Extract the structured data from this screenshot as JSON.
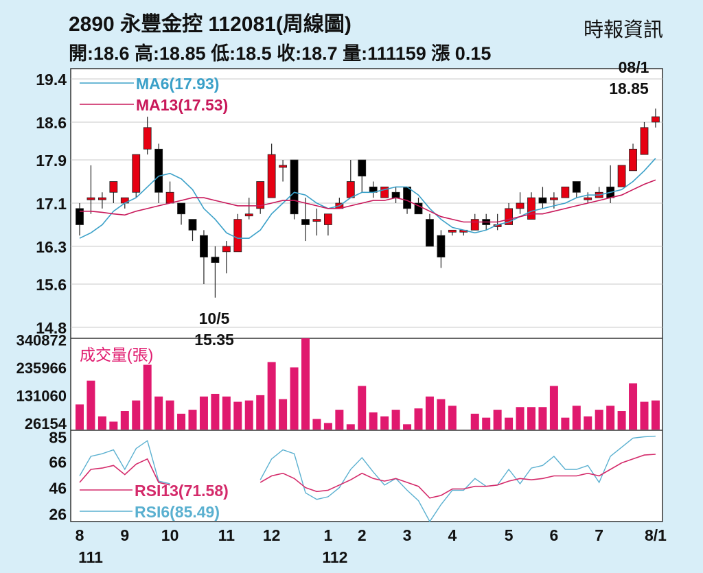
{
  "header": {
    "title": "2890  永豐金控 112081(周線圖)",
    "ohlc": "開:18.6 高:18.85 低:18.5 收:18.7 量:111159 漲 0.15",
    "source": "時報資訊"
  },
  "colors": {
    "up": "#e60012",
    "down": "#000000",
    "ma6": "#3aa0c8",
    "ma13": "#c8185a",
    "volume": "#e0196e",
    "rsi13": "#d42a6a",
    "rsi6": "#5ab0d0",
    "grid": "#c8c8c8"
  },
  "chart_data": [
    {
      "type": "candlestick",
      "y_ticks": [
        "19.4",
        "18.6",
        "17.9",
        "17.1",
        "16.3",
        "15.6",
        "14.8"
      ],
      "ylim": [
        14.8,
        19.4
      ],
      "legend": [
        {
          "label": "MA6(17.93)",
          "key": "ma6"
        },
        {
          "label": "MA13(17.53)",
          "key": "ma13"
        }
      ],
      "annotations": [
        {
          "date": "10/5",
          "value": "15.35"
        },
        {
          "date": "08/1",
          "value": "18.85"
        }
      ],
      "candles": [
        [
          17.0,
          16.7,
          17.1,
          16.5
        ],
        [
          17.2,
          17.2,
          17.8,
          16.9
        ],
        [
          17.2,
          17.2,
          17.3,
          17.0
        ],
        [
          17.3,
          17.5,
          17.5,
          17.1
        ],
        [
          17.1,
          17.2,
          17.2,
          17.0
        ],
        [
          17.3,
          18.0,
          18.0,
          17.2
        ],
        [
          18.1,
          18.5,
          18.7,
          18.0
        ],
        [
          18.1,
          17.3,
          18.2,
          17.1
        ],
        [
          17.1,
          17.3,
          17.5,
          17.1
        ],
        [
          17.1,
          16.9,
          17.1,
          16.7
        ],
        [
          16.8,
          16.6,
          16.8,
          16.4
        ],
        [
          16.5,
          16.1,
          16.6,
          15.6
        ],
        [
          16.1,
          16.0,
          16.3,
          15.35
        ],
        [
          16.2,
          16.3,
          16.4,
          15.8
        ],
        [
          16.2,
          16.8,
          16.9,
          16.2
        ],
        [
          16.9,
          16.9,
          17.2,
          16.8
        ],
        [
          17.0,
          17.5,
          17.5,
          16.9
        ],
        [
          17.2,
          18.0,
          18.2,
          17.2
        ],
        [
          17.8,
          17.8,
          17.9,
          17.5
        ],
        [
          17.9,
          16.9,
          17.9,
          16.8
        ],
        [
          16.8,
          16.7,
          17.2,
          16.4
        ],
        [
          16.8,
          16.8,
          17.0,
          16.5
        ],
        [
          16.7,
          16.9,
          16.9,
          16.5
        ],
        [
          17.0,
          17.1,
          17.2,
          17.0
        ],
        [
          17.2,
          17.5,
          17.9,
          17.2
        ],
        [
          17.9,
          17.6,
          17.9,
          17.3
        ],
        [
          17.4,
          17.3,
          17.5,
          17.2
        ],
        [
          17.2,
          17.4,
          17.4,
          17.2
        ],
        [
          17.3,
          17.2,
          17.4,
          17.1
        ],
        [
          17.4,
          17.0,
          17.4,
          16.9
        ],
        [
          17.1,
          16.9,
          17.2,
          16.9
        ],
        [
          16.8,
          16.3,
          16.9,
          16.3
        ],
        [
          16.5,
          16.1,
          16.6,
          15.9
        ],
        [
          16.6,
          16.6,
          16.6,
          16.5
        ],
        [
          16.6,
          16.6,
          16.6,
          16.5
        ],
        [
          16.6,
          16.8,
          16.9,
          16.6
        ],
        [
          16.8,
          16.7,
          16.9,
          16.6
        ],
        [
          16.7,
          16.7,
          16.9,
          16.6
        ],
        [
          16.7,
          17.0,
          17.1,
          16.7
        ],
        [
          17.0,
          17.1,
          17.3,
          16.9
        ],
        [
          16.8,
          17.2,
          17.3,
          16.8
        ],
        [
          17.2,
          17.1,
          17.4,
          17.0
        ],
        [
          17.2,
          17.2,
          17.3,
          17.0
        ],
        [
          17.2,
          17.4,
          17.4,
          17.2
        ],
        [
          17.5,
          17.3,
          17.5,
          17.2
        ],
        [
          17.2,
          17.2,
          17.3,
          17.1
        ],
        [
          17.2,
          17.3,
          17.4,
          17.2
        ],
        [
          17.4,
          17.2,
          17.8,
          17.1
        ],
        [
          17.4,
          17.8,
          17.8,
          17.4
        ],
        [
          17.7,
          18.1,
          18.2,
          17.7
        ],
        [
          18.0,
          18.5,
          18.6,
          18.0
        ],
        [
          18.6,
          18.7,
          18.85,
          18.5
        ]
      ],
      "ma6": [
        16.45,
        16.55,
        16.7,
        16.95,
        17.1,
        17.2,
        17.4,
        17.6,
        17.65,
        17.55,
        17.35,
        17.0,
        16.8,
        16.55,
        16.45,
        16.45,
        16.6,
        16.9,
        17.1,
        17.3,
        17.25,
        17.1,
        17.0,
        17.05,
        17.2,
        17.3,
        17.3,
        17.35,
        17.4,
        17.4,
        17.25,
        17.0,
        16.8,
        16.65,
        16.6,
        16.55,
        16.6,
        16.7,
        16.75,
        16.85,
        16.95,
        17.0,
        17.05,
        17.1,
        17.2,
        17.25,
        17.25,
        17.3,
        17.35,
        17.5,
        17.7,
        17.93
      ],
      "ma13": [
        16.95,
        16.95,
        16.93,
        16.9,
        16.88,
        16.95,
        17.0,
        17.05,
        17.1,
        17.15,
        17.2,
        17.2,
        17.15,
        17.1,
        17.05,
        17.05,
        17.05,
        17.1,
        17.15,
        17.15,
        17.1,
        17.05,
        17.0,
        17.0,
        17.05,
        17.1,
        17.15,
        17.15,
        17.2,
        17.15,
        17.05,
        16.95,
        16.85,
        16.8,
        16.75,
        16.75,
        16.75,
        16.75,
        16.8,
        16.85,
        16.9,
        16.9,
        16.95,
        17.0,
        17.05,
        17.1,
        17.15,
        17.2,
        17.25,
        17.35,
        17.45,
        17.53
      ]
    },
    {
      "type": "bar",
      "title": "成交量(張)",
      "y_ticks": [
        "340872",
        "235966",
        "131060",
        "26154"
      ],
      "values": [
        95000,
        185000,
        50000,
        30000,
        70000,
        110000,
        245000,
        125000,
        110000,
        60000,
        75000,
        125000,
        135000,
        125000,
        105000,
        110000,
        130000,
        255000,
        115000,
        235000,
        345000,
        40000,
        25000,
        75000,
        20000,
        165000,
        65000,
        50000,
        75000,
        20000,
        80000,
        125000,
        115000,
        90000,
        0,
        60000,
        45000,
        75000,
        45000,
        85000,
        85000,
        85000,
        165000,
        45000,
        90000,
        50000,
        75000,
        90000,
        70000,
        175000,
        105000,
        110000
      ]
    },
    {
      "type": "line",
      "y_ticks": [
        "85",
        "66",
        "46",
        "26"
      ],
      "ylim": [
        20,
        90
      ],
      "legend": [
        {
          "label": "RSI13(71.58)",
          "key": "rsi13"
        },
        {
          "label": "RSI6(85.49)",
          "key": "rsi6"
        }
      ],
      "rsi13": [
        50,
        60,
        61,
        63,
        56,
        64,
        68,
        50,
        48,
        null,
        null,
        null,
        null,
        null,
        null,
        null,
        50,
        55,
        57,
        53,
        46,
        43,
        44,
        48,
        52,
        57,
        53,
        51,
        53,
        50,
        47,
        38,
        40,
        45,
        45,
        47,
        47,
        48,
        51,
        53,
        52,
        53,
        55,
        55,
        55,
        57,
        55,
        60,
        65,
        68,
        71,
        71.58
      ],
      "rsi6": [
        55,
        70,
        72,
        75,
        60,
        76,
        82,
        51,
        49,
        null,
        null,
        null,
        null,
        null,
        null,
        null,
        52,
        68,
        75,
        72,
        42,
        37,
        39,
        46,
        60,
        69,
        58,
        48,
        53,
        44,
        36,
        20,
        33,
        44,
        44,
        53,
        47,
        48,
        60,
        49,
        61,
        63,
        70,
        60,
        60,
        63,
        50,
        70,
        77,
        84,
        85,
        85.49
      ]
    }
  ],
  "x_axis": {
    "labels": [
      {
        "top": "8",
        "bottom": "111",
        "week": 0
      },
      {
        "top": "9",
        "bottom": "",
        "week": 4
      },
      {
        "top": "10",
        "bottom": "",
        "week": 8
      },
      {
        "top": "11",
        "bottom": "",
        "week": 13
      },
      {
        "top": "12",
        "bottom": "",
        "week": 17
      },
      {
        "top": "1",
        "bottom": "112",
        "week": 22
      },
      {
        "top": "2",
        "bottom": "",
        "week": 25
      },
      {
        "top": "3",
        "bottom": "",
        "week": 29
      },
      {
        "top": "4",
        "bottom": "",
        "week": 33
      },
      {
        "top": "5",
        "bottom": "",
        "week": 38
      },
      {
        "top": "6",
        "bottom": "",
        "week": 42
      },
      {
        "top": "7",
        "bottom": "",
        "week": 46
      },
      {
        "top": "8/1",
        "bottom": "",
        "week": 51
      }
    ]
  }
}
